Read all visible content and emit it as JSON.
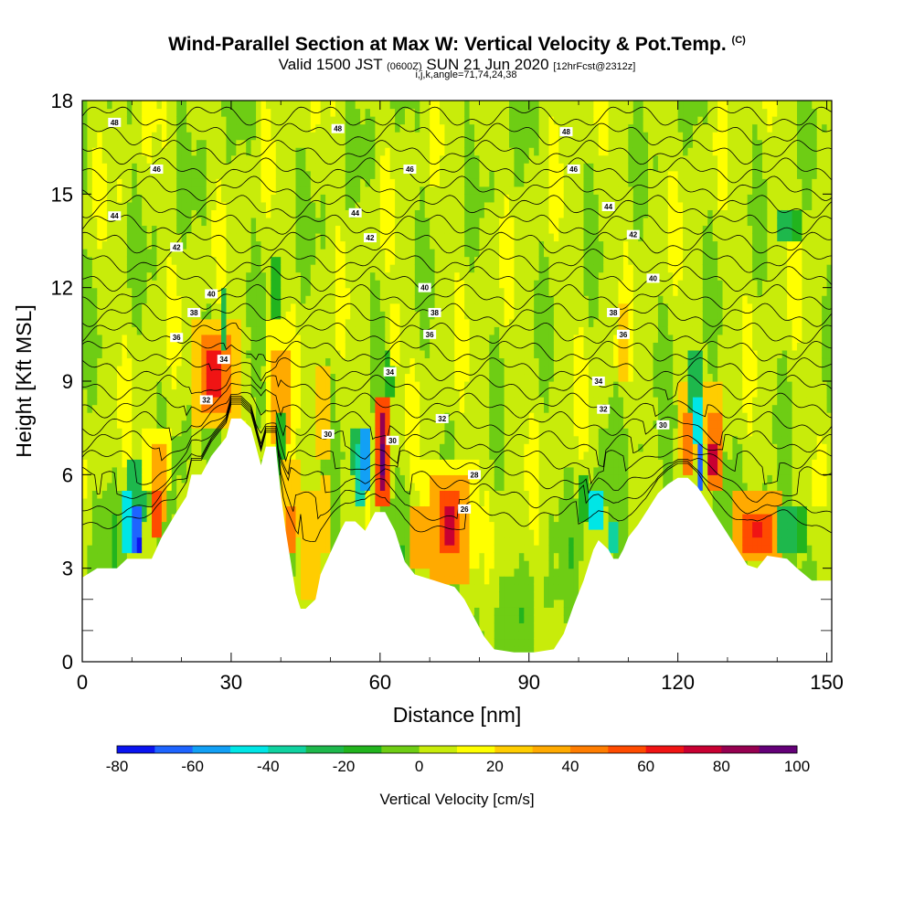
{
  "title": {
    "main": "Wind-Parallel Section at Max W: Vertical Velocity & Pot.Temp.",
    "units_tag": "(C)",
    "valid_prefix": "Valid 1500 JST",
    "valid_utc": "(0600Z)",
    "valid_date": "SUN 21 Jun 2020",
    "forecast": "[12hrFcst@2312z]",
    "params": "i,j,k,angle=71,74,24,38"
  },
  "chart_data": {
    "type": "heatmap",
    "xlabel": "Distance [nm]",
    "ylabel": "Height [Kft MSL]",
    "xlim": [
      0,
      151
    ],
    "ylim": [
      0,
      18
    ],
    "x_ticks": [
      0,
      30,
      60,
      90,
      120,
      150
    ],
    "y_ticks": [
      0,
      3,
      6,
      9,
      12,
      15,
      18
    ],
    "field": "Vertical Velocity",
    "colorbar": {
      "label": "Vertical Velocity [cm/s]",
      "ticks": [
        -80,
        -60,
        -40,
        -20,
        0,
        20,
        40,
        60,
        80,
        100
      ],
      "levels": [
        -80,
        -70,
        -60,
        -50,
        -40,
        -30,
        -20,
        -10,
        0,
        10,
        20,
        30,
        40,
        50,
        60,
        70,
        80,
        90,
        100
      ],
      "colors": [
        "#0a14f0",
        "#1e64ff",
        "#12a0f5",
        "#00e6e6",
        "#10d2a0",
        "#1eb84c",
        "#22b41e",
        "#6ecd14",
        "#c8ec0a",
        "#ffff00",
        "#ffcd00",
        "#ffaa00",
        "#ff7d00",
        "#ff4b00",
        "#f01414",
        "#c80032",
        "#960050",
        "#640078"
      ]
    },
    "terrain_profile": [
      [
        0,
        2.7
      ],
      [
        3,
        3.0
      ],
      [
        7,
        3.0
      ],
      [
        9,
        3.3
      ],
      [
        14,
        3.3
      ],
      [
        16,
        4.0
      ],
      [
        19,
        4.8
      ],
      [
        21,
        5.3
      ],
      [
        22,
        6.0
      ],
      [
        24,
        6.0
      ],
      [
        26,
        6.6
      ],
      [
        29,
        7.2
      ],
      [
        30,
        7.8
      ],
      [
        32,
        7.8
      ],
      [
        34,
        7.5
      ],
      [
        35,
        6.9
      ],
      [
        36,
        6.3
      ],
      [
        37,
        6.9
      ],
      [
        39,
        6.9
      ],
      [
        40,
        5.4
      ],
      [
        41,
        4.2
      ],
      [
        42,
        3.2
      ],
      [
        43,
        2.2
      ],
      [
        44,
        1.7
      ],
      [
        45,
        1.7
      ],
      [
        47,
        2.0
      ],
      [
        48,
        2.8
      ],
      [
        50,
        3.5
      ],
      [
        52,
        4.2
      ],
      [
        53,
        4.5
      ],
      [
        55,
        4.5
      ],
      [
        57,
        4.2
      ],
      [
        58,
        4.5
      ],
      [
        59,
        4.8
      ],
      [
        61,
        4.8
      ],
      [
        63,
        4.2
      ],
      [
        64,
        3.7
      ],
      [
        65,
        3.2
      ],
      [
        67,
        2.8
      ],
      [
        69,
        2.7
      ],
      [
        71,
        2.6
      ],
      [
        73,
        2.5
      ],
      [
        75,
        2.4
      ],
      [
        77,
        2.0
      ],
      [
        79,
        1.4
      ],
      [
        81,
        0.8
      ],
      [
        83,
        0.4
      ],
      [
        87,
        0.3
      ],
      [
        91,
        0.3
      ],
      [
        95,
        0.4
      ],
      [
        97,
        0.9
      ],
      [
        99,
        1.8
      ],
      [
        101,
        2.6
      ],
      [
        102,
        3.1
      ],
      [
        103,
        3.6
      ],
      [
        104,
        3.9
      ],
      [
        106,
        3.6
      ],
      [
        107,
        3.3
      ],
      [
        108,
        3.3
      ],
      [
        109,
        3.6
      ],
      [
        110,
        4.0
      ],
      [
        112,
        4.4
      ],
      [
        114,
        4.9
      ],
      [
        116,
        5.4
      ],
      [
        118,
        5.7
      ],
      [
        120,
        5.9
      ],
      [
        122,
        5.9
      ],
      [
        124,
        5.6
      ],
      [
        126,
        5.1
      ],
      [
        128,
        4.6
      ],
      [
        130,
        4.1
      ],
      [
        132,
        3.6
      ],
      [
        134,
        3.1
      ],
      [
        136,
        3.0
      ],
      [
        138,
        3.4
      ],
      [
        142,
        3.3
      ],
      [
        144,
        3.0
      ],
      [
        147,
        2.6
      ],
      [
        151,
        2.6
      ]
    ],
    "cells": [
      [
        8,
        10,
        3.5,
        5.5,
        -45
      ],
      [
        10,
        12,
        3.5,
        5.0,
        -70
      ],
      [
        11,
        12,
        3.5,
        4.0,
        -80
      ],
      [
        9,
        13,
        4.5,
        6.5,
        -30
      ],
      [
        14,
        16,
        4.0,
        5.5,
        55
      ],
      [
        14,
        17,
        4.5,
        7.0,
        30
      ],
      [
        12,
        18,
        5.5,
        7.5,
        12
      ],
      [
        24,
        30,
        8.0,
        10.5,
        45
      ],
      [
        25,
        28,
        8.5,
        10.0,
        60
      ],
      [
        22,
        32,
        7.5,
        11.0,
        20
      ],
      [
        28,
        29,
        10.0,
        12.0,
        -25
      ],
      [
        38,
        42,
        7.0,
        10.0,
        35
      ],
      [
        37,
        43,
        6.5,
        11.0,
        15
      ],
      [
        38,
        40,
        11.0,
        13.0,
        -20
      ],
      [
        39,
        41,
        6.0,
        8.0,
        -15
      ],
      [
        40,
        44,
        4.0,
        6.5,
        25
      ],
      [
        41,
        43,
        3.5,
        5.0,
        40
      ],
      [
        44,
        48,
        2.0,
        5.5,
        25
      ],
      [
        47,
        50,
        6.5,
        9.5,
        20
      ],
      [
        48,
        50,
        3.5,
        6.0,
        20
      ],
      [
        55,
        57,
        5.0,
        7.0,
        -40
      ],
      [
        56,
        58,
        5.5,
        7.5,
        -60
      ],
      [
        54,
        56,
        6.0,
        7.5,
        -25
      ],
      [
        59,
        62,
        5.0,
        8.5,
        55
      ],
      [
        60,
        61,
        5.5,
        8.0,
        85
      ],
      [
        60,
        61,
        6.0,
        7.0,
        95
      ],
      [
        61,
        63,
        8.5,
        10.0,
        -15
      ],
      [
        62,
        64,
        9.5,
        11.5,
        12
      ],
      [
        70,
        78,
        2.5,
        6.0,
        30
      ],
      [
        72,
        76,
        3.5,
        5.5,
        55
      ],
      [
        73,
        75,
        3.8,
        5.0,
        75
      ],
      [
        68,
        80,
        3.0,
        6.5,
        12
      ],
      [
        66,
        70,
        3.0,
        5.0,
        35
      ],
      [
        102,
        105,
        4.2,
        5.5,
        -45
      ],
      [
        100,
        102,
        4.5,
        6.0,
        -20
      ],
      [
        106,
        108,
        3.6,
        4.5,
        -35
      ],
      [
        104,
        110,
        5.0,
        7.5,
        -10
      ],
      [
        108,
        110,
        9.0,
        11.5,
        20
      ],
      [
        107,
        109,
        9.5,
        10.5,
        12
      ],
      [
        121,
        123,
        6.0,
        8.0,
        45
      ],
      [
        120,
        125,
        6.5,
        9.0,
        20
      ],
      [
        122,
        125,
        8.0,
        10.0,
        -30
      ],
      [
        123,
        125,
        7.0,
        8.5,
        -50
      ],
      [
        124,
        125,
        5.5,
        7.0,
        -70
      ],
      [
        126,
        128,
        6.0,
        7.0,
        75
      ],
      [
        126,
        129,
        5.5,
        8.0,
        45
      ],
      [
        125,
        129,
        7.0,
        9.0,
        20
      ],
      [
        131,
        141,
        3.2,
        5.5,
        35
      ],
      [
        133,
        139,
        3.5,
        4.8,
        50
      ],
      [
        135,
        137,
        4.0,
        4.5,
        60
      ],
      [
        140,
        144,
        3.5,
        5.0,
        -25
      ],
      [
        142,
        146,
        3.5,
        5.0,
        -15
      ],
      [
        140,
        143,
        13.5,
        14.5,
        -30
      ],
      [
        143,
        145,
        13.5,
        14.5,
        -20
      ]
    ],
    "contour_levels": [
      48,
      47,
      46,
      45,
      44,
      43,
      42,
      41,
      40,
      39,
      38,
      37,
      36,
      35,
      34,
      33,
      32,
      31,
      30,
      29,
      28,
      27,
      26
    ],
    "contour_labels": [
      {
        "text": "48",
        "x": 6.5,
        "y": 17.3
      },
      {
        "text": "48",
        "x": 51.5,
        "y": 17.1
      },
      {
        "text": "48",
        "x": 97.5,
        "y": 17.0
      },
      {
        "text": "46",
        "x": 15,
        "y": 15.8
      },
      {
        "text": "46",
        "x": 66,
        "y": 15.8
      },
      {
        "text": "46",
        "x": 99,
        "y": 15.8
      },
      {
        "text": "44",
        "x": 6.5,
        "y": 14.3
      },
      {
        "text": "44",
        "x": 55,
        "y": 14.4
      },
      {
        "text": "44",
        "x": 106,
        "y": 14.6
      },
      {
        "text": "42",
        "x": 19,
        "y": 13.3
      },
      {
        "text": "42",
        "x": 58,
        "y": 13.6
      },
      {
        "text": "42",
        "x": 111,
        "y": 13.7
      },
      {
        "text": "40",
        "x": 26,
        "y": 11.8
      },
      {
        "text": "40",
        "x": 69,
        "y": 12.0
      },
      {
        "text": "40",
        "x": 115,
        "y": 12.3
      },
      {
        "text": "38",
        "x": 22.5,
        "y": 11.2
      },
      {
        "text": "38",
        "x": 71,
        "y": 11.2
      },
      {
        "text": "38",
        "x": 107,
        "y": 11.2
      },
      {
        "text": "36",
        "x": 19,
        "y": 10.4
      },
      {
        "text": "36",
        "x": 70,
        "y": 10.5
      },
      {
        "text": "36",
        "x": 109,
        "y": 10.5
      },
      {
        "text": "34",
        "x": 28.5,
        "y": 9.7
      },
      {
        "text": "34",
        "x": 62,
        "y": 9.3
      },
      {
        "text": "34",
        "x": 104,
        "y": 9.0
      },
      {
        "text": "32",
        "x": 25,
        "y": 8.4
      },
      {
        "text": "32",
        "x": 72.5,
        "y": 7.8
      },
      {
        "text": "32",
        "x": 105,
        "y": 8.1
      },
      {
        "text": "30",
        "x": 49.5,
        "y": 7.3
      },
      {
        "text": "30",
        "x": 62.5,
        "y": 7.1
      },
      {
        "text": "30",
        "x": 117,
        "y": 7.6
      },
      {
        "text": "28",
        "x": 79,
        "y": 6.0
      },
      {
        "text": "26",
        "x": 77,
        "y": 4.9
      }
    ]
  }
}
